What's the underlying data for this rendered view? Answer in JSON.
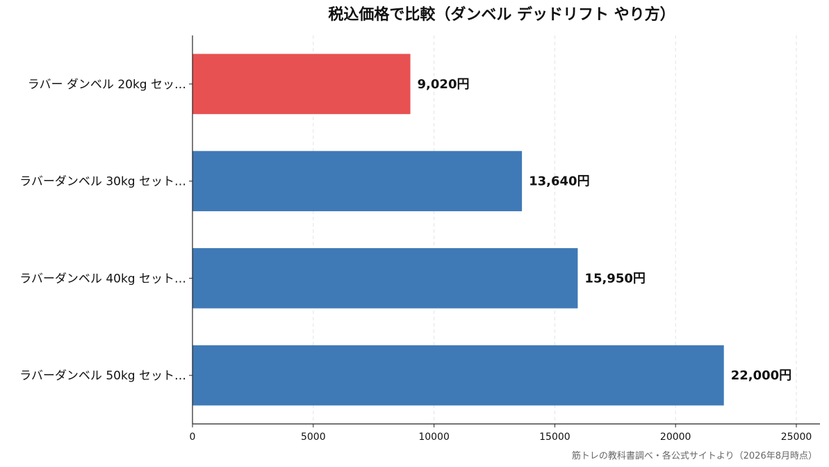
{
  "chart_data": {
    "type": "bar",
    "orientation": "horizontal",
    "title": "税込価格で比較（ダンベル デッドリフト やり方）",
    "categories": [
      "ラバー ダンベル 20kg セッ…",
      "ラバーダンベル 30kg セット…",
      "ラバーダンベル 40kg セット…",
      "ラバーダンベル 50kg セット…"
    ],
    "values": [
      9020,
      13640,
      15950,
      22000
    ],
    "value_labels": [
      "9,020円",
      "13,640円",
      "15,950円",
      "22,000円"
    ],
    "bar_colors": [
      "#e85152",
      "#3f7ab7",
      "#3f7ab7",
      "#3f7ab7"
    ],
    "xlim": [
      0,
      26000
    ],
    "xticks": [
      0,
      5000,
      10000,
      15000,
      20000,
      25000
    ],
    "xtick_labels": [
      "0",
      "5000",
      "10000",
      "15000",
      "20000",
      "25000"
    ],
    "xlabel": "",
    "ylabel": "",
    "grid": "vertical dashed",
    "source_note": "筋トレの教科書調べ・各公式サイトより（2026年8月時点）"
  }
}
